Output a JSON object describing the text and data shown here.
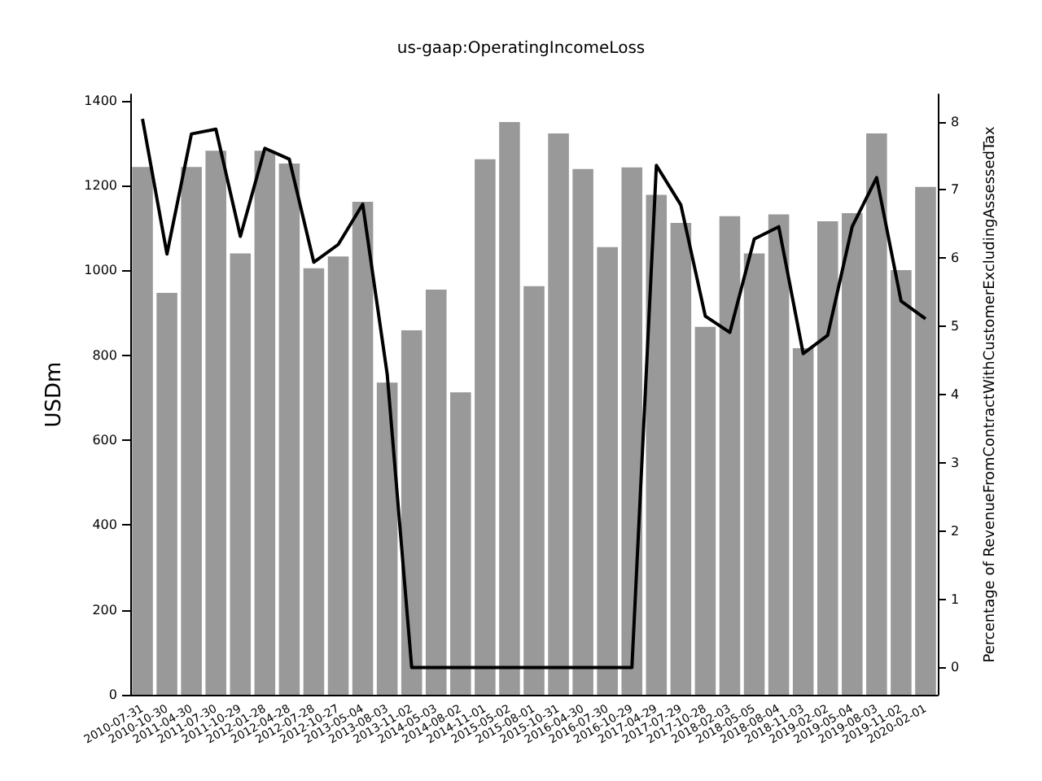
{
  "chart_data": {
    "type": "bar",
    "title": "us-gaap:OperatingIncomeLoss",
    "ylabel": "USDm",
    "y2label": "Percentage of RevenueFromContractWithCustomerExcludingAssessedTax",
    "categories": [
      "2010-07-31",
      "2010-10-30",
      "2011-04-30",
      "2011-07-30",
      "2011-10-29",
      "2012-01-28",
      "2012-04-28",
      "2012-07-28",
      "2012-10-27",
      "2013-05-04",
      "2013-08-03",
      "2013-11-02",
      "2014-05-03",
      "2014-08-02",
      "2014-11-01",
      "2015-05-02",
      "2015-08-01",
      "2015-10-31",
      "2016-04-30",
      "2016-07-30",
      "2016-10-29",
      "2017-04-29",
      "2017-07-29",
      "2017-10-28",
      "2018-02-03",
      "2018-05-05",
      "2018-08-04",
      "2018-11-03",
      "2019-02-02",
      "2019-05-04",
      "2019-08-03",
      "2019-11-02",
      "2020-02-01"
    ],
    "series": [
      {
        "color": "#999999",
        "values": [
          1244,
          947,
          1244,
          1282,
          1040,
          1282,
          1252,
          1005,
          1033,
          1162,
          736,
          859,
          955,
          713,
          1262,
          1350,
          963,
          1323,
          1239,
          1055,
          1243,
          1178,
          1112,
          867,
          1128,
          1040,
          1132,
          817,
          1116,
          1135,
          1323,
          1001,
          1197
        ]
      },
      {
        "type": "line",
        "axis": "y2",
        "color": "#000000",
        "marker": "none",
        "line_style": "solid",
        "values": [
          8.04,
          6.06,
          7.82,
          7.89,
          6.32,
          7.61,
          7.45,
          5.94,
          6.2,
          6.79,
          4.3,
          0,
          0,
          0,
          0,
          0,
          0,
          0,
          0,
          0,
          0,
          7.36,
          6.78,
          5.15,
          4.91,
          6.28,
          6.46,
          4.6,
          4.87,
          6.46,
          7.18,
          5.37,
          5.11
        ]
      }
    ],
    "ylim": [
      0,
      1415
    ],
    "yticks": [
      0,
      200,
      400,
      600,
      800,
      1000,
      1200,
      1400
    ],
    "y2lim": [
      -0.4,
      8.4
    ],
    "y2ticks": [
      0,
      1,
      2,
      3,
      4,
      5,
      6,
      7,
      8
    ],
    "grid": false
  }
}
